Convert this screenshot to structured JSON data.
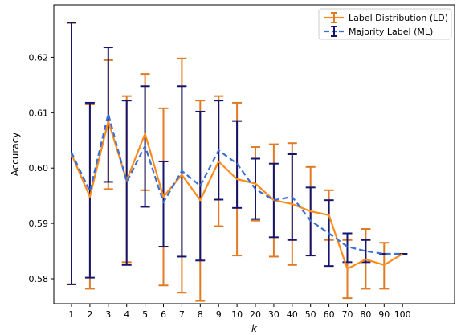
{
  "chart_data": {
    "type": "line",
    "xlabel": "k",
    "ylabel": "Accuracy",
    "categories": [
      "1",
      "2",
      "3",
      "4",
      "5",
      "6",
      "7",
      "8",
      "9",
      "10",
      "20",
      "30",
      "40",
      "50",
      "60",
      "70",
      "80",
      "90",
      "100"
    ],
    "ylim": [
      0.5755,
      0.6295
    ],
    "yticks": [
      0.58,
      0.59,
      0.6,
      0.61,
      0.62
    ],
    "ytick_labels": [
      "0.58",
      "0.59",
      "0.60",
      "0.61",
      "0.62"
    ],
    "grid": false,
    "legend_position": "top-right",
    "series": [
      {
        "name": "Label Distribution (LD)",
        "color": "#ff8c1a",
        "errorbar_color": "#e07b24",
        "line_style": "solid",
        "values": [
          0.6025,
          0.5948,
          0.6085,
          0.5978,
          0.6062,
          0.5948,
          0.5988,
          0.5942,
          0.6012,
          0.598,
          0.5972,
          0.5942,
          0.5935,
          0.5922,
          0.5915,
          0.5818,
          0.5835,
          0.5825,
          0.5845
        ],
        "err_low": [
          0.579,
          0.5782,
          0.5962,
          0.583,
          0.596,
          0.5788,
          0.5775,
          0.576,
          0.5895,
          0.5842,
          0.5905,
          0.584,
          0.5825,
          0.5842,
          0.587,
          0.5765,
          0.5782,
          0.5782,
          0.5845
        ],
        "err_high": [
          0.6262,
          0.6115,
          0.6195,
          0.613,
          0.617,
          0.6108,
          0.6198,
          0.6122,
          0.613,
          0.6118,
          0.6038,
          0.6043,
          0.6045,
          0.6002,
          0.596,
          0.587,
          0.589,
          0.5865,
          0.5845
        ]
      },
      {
        "name": "Majority Label (ML)",
        "color": "#3a6fd8",
        "errorbar_color": "#15156e",
        "line_style": "dashed",
        "values": [
          0.6028,
          0.5958,
          0.6098,
          0.5975,
          0.604,
          0.5938,
          0.5995,
          0.5968,
          0.6032,
          0.6008,
          0.5962,
          0.5942,
          0.5948,
          0.5905,
          0.5882,
          0.5858,
          0.585,
          0.5845,
          0.5845
        ],
        "err_low": [
          0.579,
          0.5802,
          0.5975,
          0.5825,
          0.593,
          0.5858,
          0.584,
          0.5833,
          0.5943,
          0.5928,
          0.5908,
          0.5875,
          0.587,
          0.5842,
          0.5823,
          0.583,
          0.583,
          0.5845,
          0.5845
        ],
        "err_high": [
          0.6263,
          0.6118,
          0.6218,
          0.6122,
          0.6148,
          0.6012,
          0.6148,
          0.6102,
          0.6122,
          0.6085,
          0.6017,
          0.6008,
          0.6025,
          0.5965,
          0.5942,
          0.5882,
          0.587,
          0.5845,
          0.5845
        ]
      }
    ]
  }
}
